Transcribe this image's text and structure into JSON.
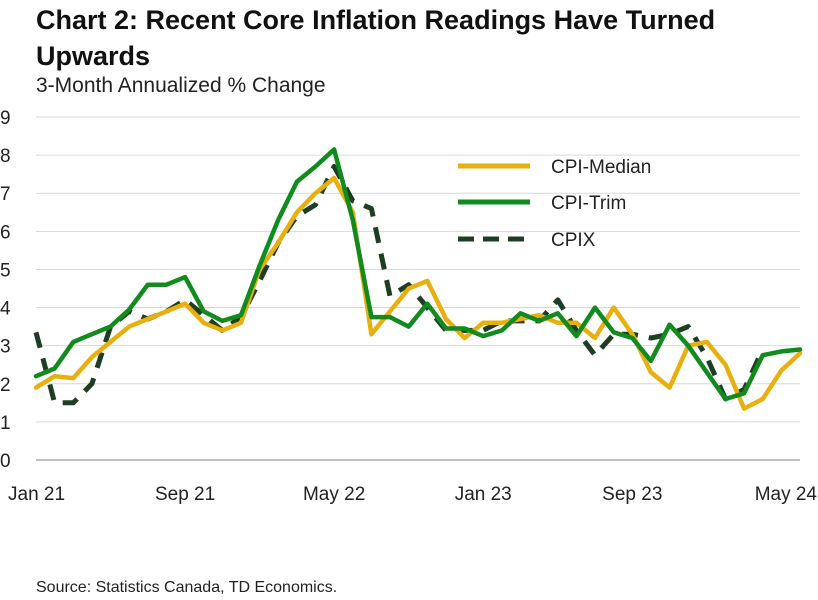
{
  "title": "Chart 2: Recent Core Inflation Readings Have Turned Upwards",
  "subtitle": "3-Month Annualized % Change",
  "source": "Source: Statistics Canada, TD Economics.",
  "colors": {
    "cpi_median": "#E8B00E",
    "cpi_trim": "#118A1E",
    "cpix": "#1E3D22",
    "grid": "#D9D9D9",
    "axis": "#9A9A9A"
  },
  "chart_data": {
    "type": "line",
    "title": "Chart 2: Recent Core Inflation Readings Have Turned Upwards",
    "ylabel": "3-Month Annualized % Change",
    "xlabel": "",
    "ylim": [
      0,
      9
    ],
    "yticks": [
      "0",
      "1",
      "2",
      "3",
      "4",
      "5",
      "6",
      "7",
      "8",
      "9"
    ],
    "xticks": [
      {
        "label": "Jan 21",
        "index": 0
      },
      {
        "label": "Sep 21",
        "index": 8
      },
      {
        "label": "May 22",
        "index": 16
      },
      {
        "label": "Jan 23",
        "index": 24
      },
      {
        "label": "Sep 23",
        "index": 32
      },
      {
        "label": "May 24",
        "index": 40
      }
    ],
    "x": [
      "Jan 21",
      "Feb 21",
      "Mar 21",
      "Apr 21",
      "May 21",
      "Jun 21",
      "Jul 21",
      "Aug 21",
      "Sep 21",
      "Oct 21",
      "Nov 21",
      "Dec 21",
      "Jan 22",
      "Feb 22",
      "Mar 22",
      "Apr 22",
      "May 22",
      "Jun 22",
      "Jul 22",
      "Aug 22",
      "Sep 22",
      "Oct 22",
      "Nov 22",
      "Dec 22",
      "Jan 23",
      "Feb 23",
      "Mar 23",
      "Apr 23",
      "May 23",
      "Jun 23",
      "Jul 23",
      "Aug 23",
      "Sep 23",
      "Oct 23",
      "Nov 23",
      "Dec 23",
      "Jan 24",
      "Feb 24",
      "Mar 24",
      "Apr 24",
      "May 24",
      "Jun 24"
    ],
    "legend_position": "top-right",
    "series": [
      {
        "name": "CPI-Median",
        "style": "solid",
        "values": [
          1.9,
          2.2,
          2.15,
          2.7,
          3.1,
          3.5,
          3.7,
          3.9,
          4.1,
          3.6,
          3.4,
          3.6,
          5.0,
          5.7,
          6.5,
          7.0,
          7.4,
          6.5,
          3.3,
          3.9,
          4.5,
          4.7,
          3.7,
          3.2,
          3.6,
          3.6,
          3.7,
          3.8,
          3.6,
          3.6,
          3.2,
          4.0,
          3.3,
          2.3,
          1.9,
          3.0,
          3.1,
          2.5,
          1.35,
          1.6,
          2.35,
          2.8
        ]
      },
      {
        "name": "CPI-Trim",
        "style": "solid",
        "values": [
          2.2,
          2.4,
          3.1,
          3.3,
          3.5,
          3.95,
          4.6,
          4.6,
          4.8,
          3.9,
          3.65,
          3.8,
          5.1,
          6.3,
          7.3,
          7.7,
          8.15,
          6.3,
          3.75,
          3.75,
          3.5,
          4.1,
          3.45,
          3.45,
          3.25,
          3.4,
          3.85,
          3.65,
          3.85,
          3.25,
          4.0,
          3.35,
          3.2,
          2.6,
          3.55,
          3.0,
          2.3,
          1.6,
          1.75,
          2.75,
          2.85,
          2.9
        ]
      },
      {
        "name": "CPIX",
        "style": "dashed",
        "values": [
          3.35,
          1.5,
          1.5,
          2.0,
          3.5,
          3.9,
          3.7,
          3.9,
          4.2,
          3.8,
          3.4,
          3.75,
          4.7,
          5.7,
          6.4,
          6.7,
          7.7,
          6.8,
          6.6,
          4.3,
          4.6,
          4.0,
          3.4,
          3.4,
          3.4,
          3.65,
          3.65,
          3.65,
          4.2,
          3.4,
          2.75,
          3.3,
          3.3,
          3.2,
          3.3,
          3.5,
          2.7,
          1.6,
          1.85,
          2.9,
          null,
          null
        ]
      }
    ]
  }
}
